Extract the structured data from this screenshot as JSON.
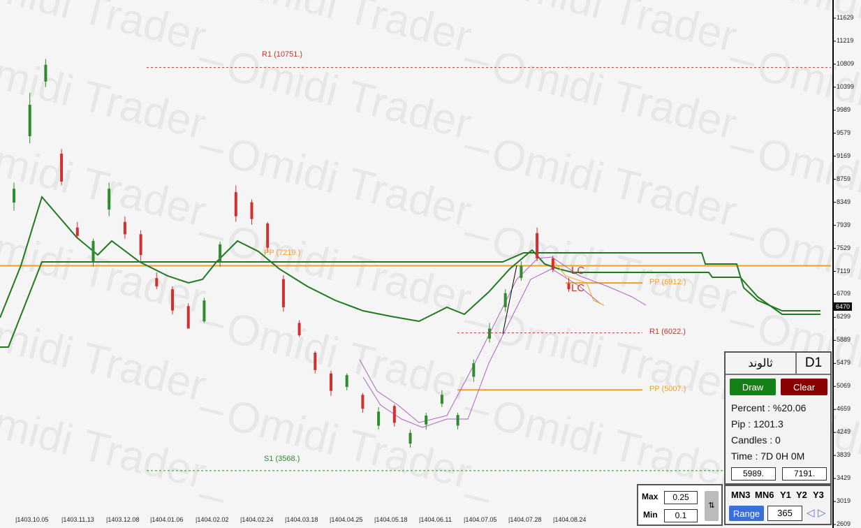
{
  "watermark": "Omidi Trader_",
  "chart_data": {
    "type": "candlestick",
    "y_axis": {
      "ticks": [
        11629,
        11219,
        10809,
        10399,
        9989,
        9579,
        9169,
        8759,
        8349,
        7939,
        7529,
        7119,
        6709,
        6299,
        5889,
        5479,
        5069,
        4659,
        4249,
        3839,
        3429,
        3019,
        2609
      ],
      "range": [
        2609,
        11629
      ]
    },
    "x_axis": {
      "ticks": [
        "05",
        "|1403.10.05",
        "|1403.11.13",
        "|1403.12.08",
        "|1404.01.06",
        "|1404.02.02",
        "|1404.02.24",
        "|1404.03.18",
        "|1404.04.25",
        "|1404.05.18",
        "|1404.06.11",
        "|1404.07.05",
        "|1404.07.28",
        "|1404.08.24"
      ]
    },
    "current_price": "6470",
    "candles": [
      [
        8345,
        8700,
        8200,
        8590
      ],
      [
        9527,
        10300,
        9400,
        10086
      ],
      [
        10500,
        10900,
        10400,
        10800
      ],
      [
        9215,
        9300,
        8650,
        8718
      ],
      [
        7900,
        8000,
        7700,
        7750
      ],
      [
        7287,
        7700,
        7200,
        7660
      ],
      [
        8220,
        8700,
        8100,
        8590
      ],
      [
        8000,
        8100,
        7700,
        7780
      ],
      [
        7780,
        7850,
        7300,
        7410
      ],
      [
        7000,
        7100,
        6800,
        6850
      ],
      [
        6800,
        6850,
        6350,
        6420
      ],
      [
        6500,
        6550,
        6100,
        6100
      ],
      [
        6230,
        6650,
        6200,
        6600
      ],
      [
        7290,
        7650,
        7200,
        7600
      ],
      [
        8530,
        8650,
        8000,
        8100
      ],
      [
        8350,
        8400,
        7950,
        8050
      ],
      [
        7970,
        8000,
        7450,
        7540
      ],
      [
        6980,
        7050,
        6400,
        6480
      ],
      [
        6200,
        6250,
        5950,
        5980
      ],
      [
        5670,
        5700,
        5300,
        5360
      ],
      [
        5300,
        5350,
        4900,
        4990
      ],
      [
        5060,
        5300,
        5000,
        5270
      ],
      [
        4920,
        4950,
        4600,
        4670
      ],
      [
        4370,
        4700,
        4300,
        4620
      ],
      [
        4720,
        4750,
        4350,
        4420
      ],
      [
        4050,
        4300,
        3980,
        4240
      ],
      [
        4390,
        4600,
        4300,
        4550
      ],
      [
        4760,
        5000,
        4700,
        4920
      ],
      [
        4370,
        4600,
        4300,
        4560
      ],
      [
        5240,
        5550,
        5150,
        5480
      ],
      [
        5920,
        6200,
        5850,
        6100
      ],
      [
        6480,
        6800,
        6400,
        6730
      ],
      [
        7000,
        7300,
        6950,
        7220
      ],
      [
        7800,
        7900,
        7300,
        7350
      ],
      [
        7350,
        7400,
        7100,
        7150
      ],
      [
        6900,
        7000,
        6750,
        6800
      ]
    ],
    "levels": [
      {
        "label": "R1 (10751.)",
        "value": 10751,
        "color": "#d0302b",
        "style": "dashed"
      },
      {
        "label": "PP (7219.)",
        "value": 7219,
        "color": "#f0a020",
        "style": "solid"
      },
      {
        "label": "S1 (3568.)",
        "value": 3568,
        "color": "#2a8a2a",
        "style": "dashed"
      },
      {
        "label": "R1 (6022.)",
        "value": 6022,
        "color": "#d0302b",
        "style": "dashed"
      },
      {
        "label": "PP (5007.)",
        "value": 5007,
        "color": "#f0a020",
        "style": "solid"
      },
      {
        "label": "PP (6912.)",
        "value": 6912,
        "color": "#f0a020",
        "style": "solid"
      }
    ],
    "annotations": [
      "LC",
      "LC"
    ],
    "colors": {
      "up": "#2e8b2e",
      "down": "#d03030",
      "ma": "#1f7a1f",
      "band": "#b060c0"
    }
  },
  "panel": {
    "symbol": "ثالوند",
    "timeframe": "D1",
    "draw": "Draw",
    "clear": "Clear",
    "percent": "Percent : %20.06",
    "pip": "Pip : 1201.3",
    "candles": "Candles : 0",
    "time": "Time : 7D 0H 0M",
    "from": "5989.",
    "to": "7191."
  },
  "timeframes": {
    "items": [
      "MN3",
      "MN6",
      "Y1",
      "Y2",
      "Y3"
    ],
    "range": "Range",
    "range_value": "365",
    "prev": "◁",
    "next": "▷"
  },
  "maxmin": {
    "max_label": "Max",
    "max": "0.25",
    "min_label": "Min",
    "min": "0.1"
  }
}
